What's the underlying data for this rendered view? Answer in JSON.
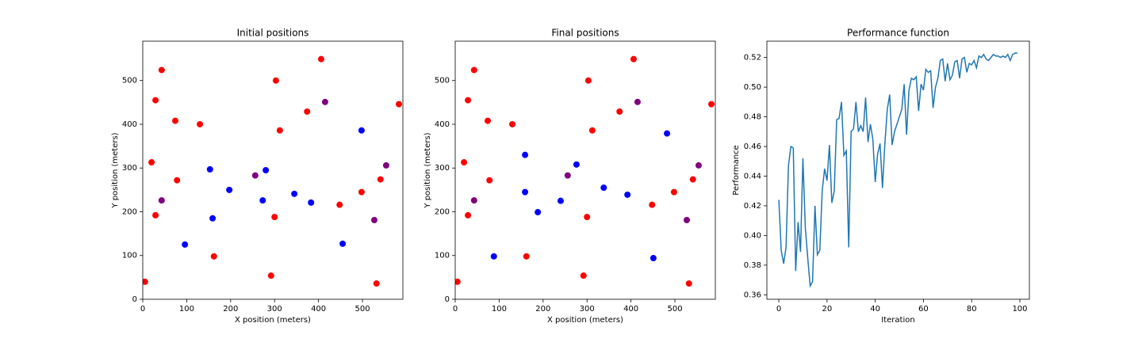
{
  "chart_data": [
    {
      "type": "scatter",
      "title": "Initial positions",
      "xlabel": "X position (meters)",
      "ylabel": "Y position (meters)",
      "xlim": [
        0,
        592
      ],
      "ylim": [
        0,
        590
      ],
      "xticks": [
        0,
        100,
        200,
        300,
        400,
        500
      ],
      "yticks": [
        0,
        100,
        200,
        300,
        400,
        500
      ],
      "grid": false,
      "series": [
        {
          "color": "#ff0000",
          "x": [
            5,
            20,
            29,
            29,
            43,
            74,
            78,
            130,
            162,
            292,
            300,
            303,
            312,
            374,
            406,
            448,
            498,
            532,
            541,
            583
          ],
          "values": [
            40,
            313,
            192,
            455,
            524,
            408,
            272,
            400,
            98,
            54,
            188,
            500,
            386,
            429,
            549,
            216,
            245,
            36,
            274,
            446
          ]
        },
        {
          "color": "#800080",
          "x": [
            43,
            256,
            415,
            527,
            554
          ],
          "values": [
            226,
            283,
            451,
            181,
            306
          ]
        },
        {
          "color": "#0000ff",
          "x": [
            96,
            153,
            159,
            197,
            273,
            280,
            345,
            383,
            455,
            498
          ],
          "values": [
            125,
            297,
            185,
            250,
            226,
            295,
            241,
            221,
            127,
            386
          ]
        }
      ]
    },
    {
      "type": "scatter",
      "title": "Final positions",
      "xlabel": "X position (meters)",
      "ylabel": "Y position (meters)",
      "xlim": [
        0,
        592
      ],
      "ylim": [
        0,
        590
      ],
      "xticks": [
        0,
        100,
        200,
        300,
        400,
        500
      ],
      "yticks": [
        0,
        100,
        200,
        300,
        400,
        500
      ],
      "grid": false,
      "series": [
        {
          "color": "#ff0000",
          "x": [
            5,
            20,
            29,
            29,
            43,
            74,
            78,
            130,
            162,
            292,
            300,
            303,
            312,
            374,
            406,
            448,
            498,
            532,
            541,
            583
          ],
          "values": [
            40,
            313,
            192,
            455,
            524,
            408,
            272,
            400,
            98,
            54,
            188,
            500,
            386,
            429,
            549,
            216,
            245,
            36,
            274,
            446
          ]
        },
        {
          "color": "#800080",
          "x": [
            43,
            256,
            415,
            527,
            554
          ],
          "values": [
            226,
            283,
            451,
            181,
            306
          ]
        },
        {
          "color": "#0000ff",
          "x": [
            88,
            159,
            159,
            188,
            240,
            276,
            338,
            392,
            482,
            451
          ],
          "values": [
            98,
            330,
            245,
            199,
            225,
            308,
            255,
            239,
            379,
            94
          ]
        }
      ]
    },
    {
      "type": "line",
      "title": "Performance function",
      "xlabel": "Iteration",
      "ylabel": "Performance",
      "xlim": [
        -4.95,
        103.95
      ],
      "ylim": [
        0.357,
        0.531
      ],
      "xticks": [
        0,
        20,
        40,
        60,
        80,
        100
      ],
      "yticks": [
        0.36,
        0.38,
        {
          "value": 0.4,
          "label": "0.40"
        },
        0.42,
        0.44,
        0.46,
        0.48,
        {
          "value": 0.5,
          "label": "0.50"
        },
        0.52
      ],
      "grid": false,
      "x": [
        0,
        1,
        2,
        3,
        4,
        5,
        6,
        7,
        8,
        9,
        10,
        11,
        12,
        13,
        14,
        15,
        16,
        17,
        18,
        19,
        20,
        21,
        22,
        23,
        24,
        25,
        26,
        27,
        28,
        29,
        30,
        31,
        32,
        33,
        34,
        35,
        36,
        37,
        38,
        39,
        40,
        41,
        42,
        43,
        44,
        45,
        46,
        47,
        48,
        49,
        50,
        51,
        52,
        53,
        54,
        55,
        56,
        57,
        58,
        59,
        60,
        61,
        62,
        63,
        64,
        65,
        66,
        67,
        68,
        69,
        70,
        71,
        72,
        73,
        74,
        75,
        76,
        77,
        78,
        79,
        80,
        81,
        82,
        83,
        84,
        85,
        86,
        87,
        88,
        89,
        90,
        91,
        92,
        93,
        94,
        95,
        96,
        97,
        98,
        99
      ],
      "series": [
        {
          "color": "#1f77b4",
          "values": [
            0.424,
            0.39,
            0.381,
            0.392,
            0.447,
            0.46,
            0.459,
            0.376,
            0.409,
            0.389,
            0.452,
            0.405,
            0.385,
            0.366,
            0.369,
            0.42,
            0.387,
            0.39,
            0.43,
            0.445,
            0.437,
            0.461,
            0.422,
            0.43,
            0.478,
            0.479,
            0.49,
            0.454,
            0.457,
            0.392,
            0.47,
            0.472,
            0.49,
            0.47,
            0.474,
            0.47,
            0.493,
            0.463,
            0.475,
            0.465,
            0.436,
            0.455,
            0.462,
            0.432,
            0.462,
            0.485,
            0.495,
            0.461,
            0.47,
            0.475,
            0.48,
            0.485,
            0.502,
            0.468,
            0.498,
            0.506,
            0.505,
            0.507,
            0.484,
            0.502,
            0.498,
            0.512,
            0.51,
            0.511,
            0.486,
            0.5,
            0.506,
            0.518,
            0.519,
            0.504,
            0.516,
            0.505,
            0.508,
            0.517,
            0.518,
            0.506,
            0.519,
            0.52,
            0.51,
            0.516,
            0.515,
            0.518,
            0.513,
            0.521,
            0.52,
            0.522,
            0.519,
            0.518,
            0.52,
            0.522,
            0.521,
            0.521,
            0.52,
            0.521,
            0.52,
            0.522,
            0.518,
            0.522,
            0.523,
            0.523
          ]
        }
      ]
    }
  ]
}
